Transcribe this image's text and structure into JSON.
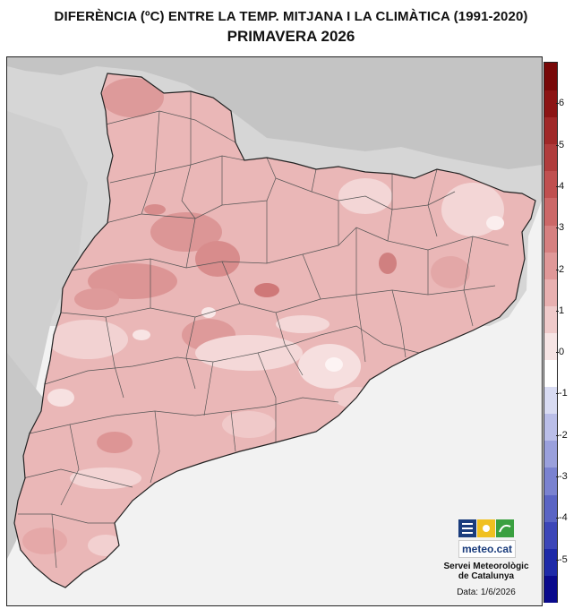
{
  "header": {
    "title": "DIFERÈNCIA (ºC) ENTRE LA TEMP. MITJANA I LA CLIMÀTICA (1991-2020)",
    "subtitle": "PRIMAVERA 2026"
  },
  "legend": {
    "ticks": [
      "6",
      "5",
      "4",
      "3",
      "2",
      "1",
      "0",
      "-1",
      "-2",
      "-3",
      "-4",
      "-5"
    ],
    "range": [
      -6,
      7
    ],
    "colors": [
      "#0a0a8c",
      "#1e2aa8",
      "#3c46b8",
      "#5a64c4",
      "#7a82d0",
      "#9aa0dc",
      "#babee8",
      "#d8dbf2",
      "#ffffff",
      "#f6e4e4",
      "#efcaca",
      "#e8b0b0",
      "#e09898",
      "#d68080",
      "#cc6868",
      "#c05050",
      "#b03c3c",
      "#a02828",
      "#8c1414",
      "#780808"
    ]
  },
  "map": {
    "region": "Catalunya",
    "sea_color": "#f2f2f2",
    "relief_color": "#d2d2d2",
    "base_anomaly_color": "#eab7b7",
    "warm_anomaly_color": "#dd9898",
    "cool_anomaly_color": "#f5dada"
  },
  "branding": {
    "logo_text": "meteo.cat",
    "org_line1": "Servei Meteorològic",
    "org_line2": "de Catalunya",
    "date": "Data: 1/6/2026"
  }
}
